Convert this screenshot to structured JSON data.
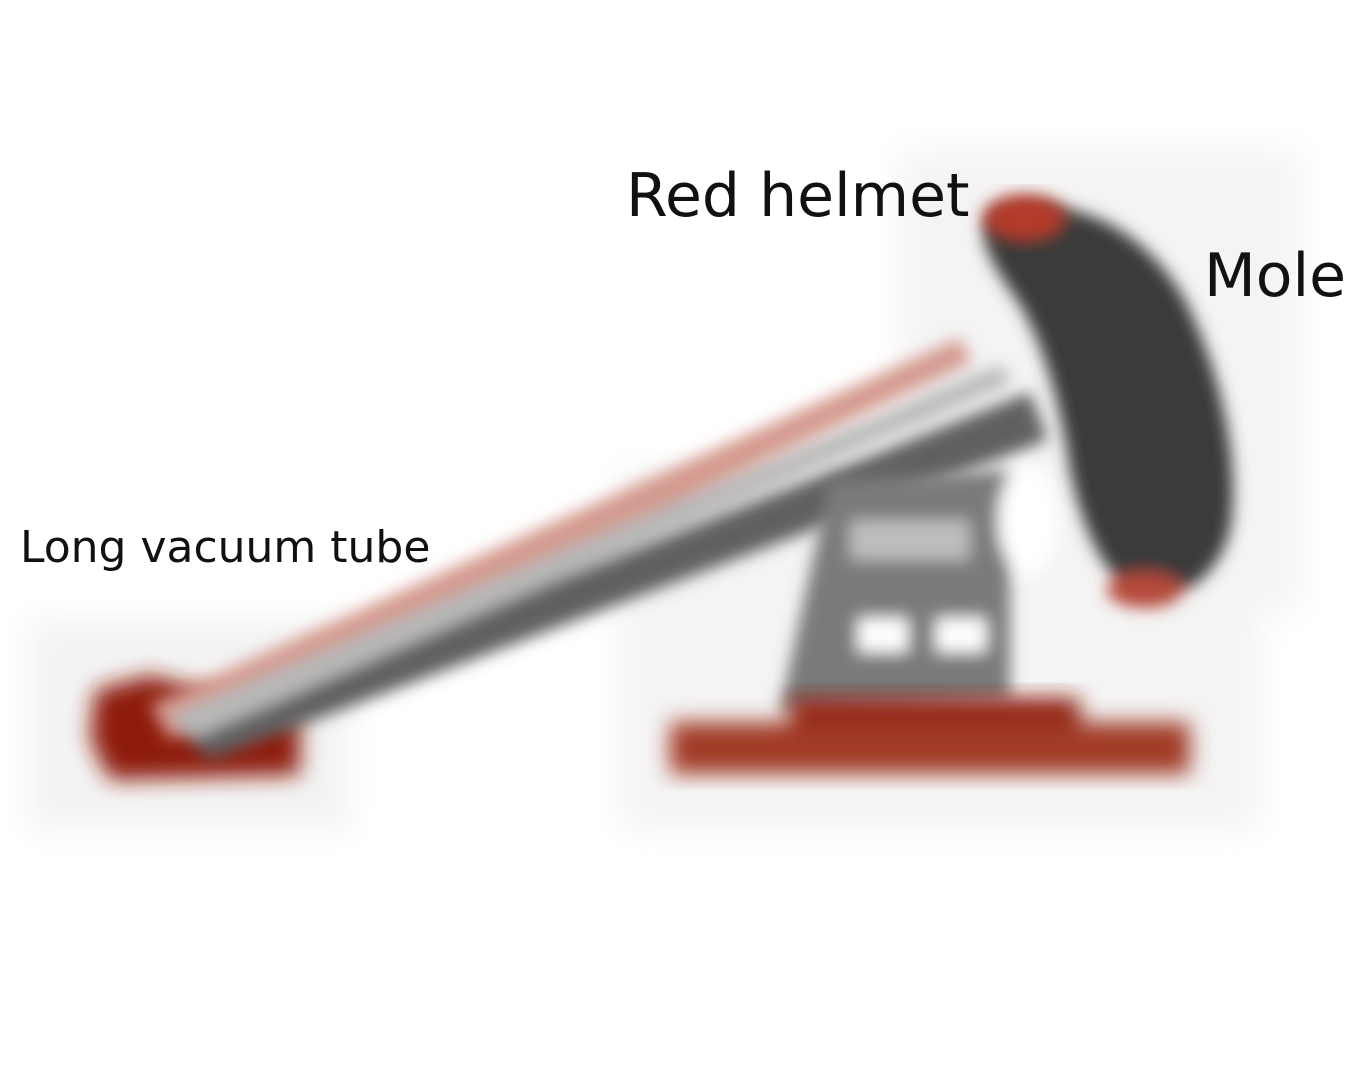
{
  "labels": {
    "red_helmet": "Red helmet",
    "mole": "Mole",
    "long_vacuum_tube": "Long vacuum tube"
  },
  "colors": {
    "background": "#ffffff",
    "base_red": "#8e1f0c",
    "tube_pink": "#d49a8e",
    "tube_gray": "#666666",
    "mole_dark": "#3a3a3a",
    "helmet_red": "#b23a2a",
    "text": "#111111"
  }
}
